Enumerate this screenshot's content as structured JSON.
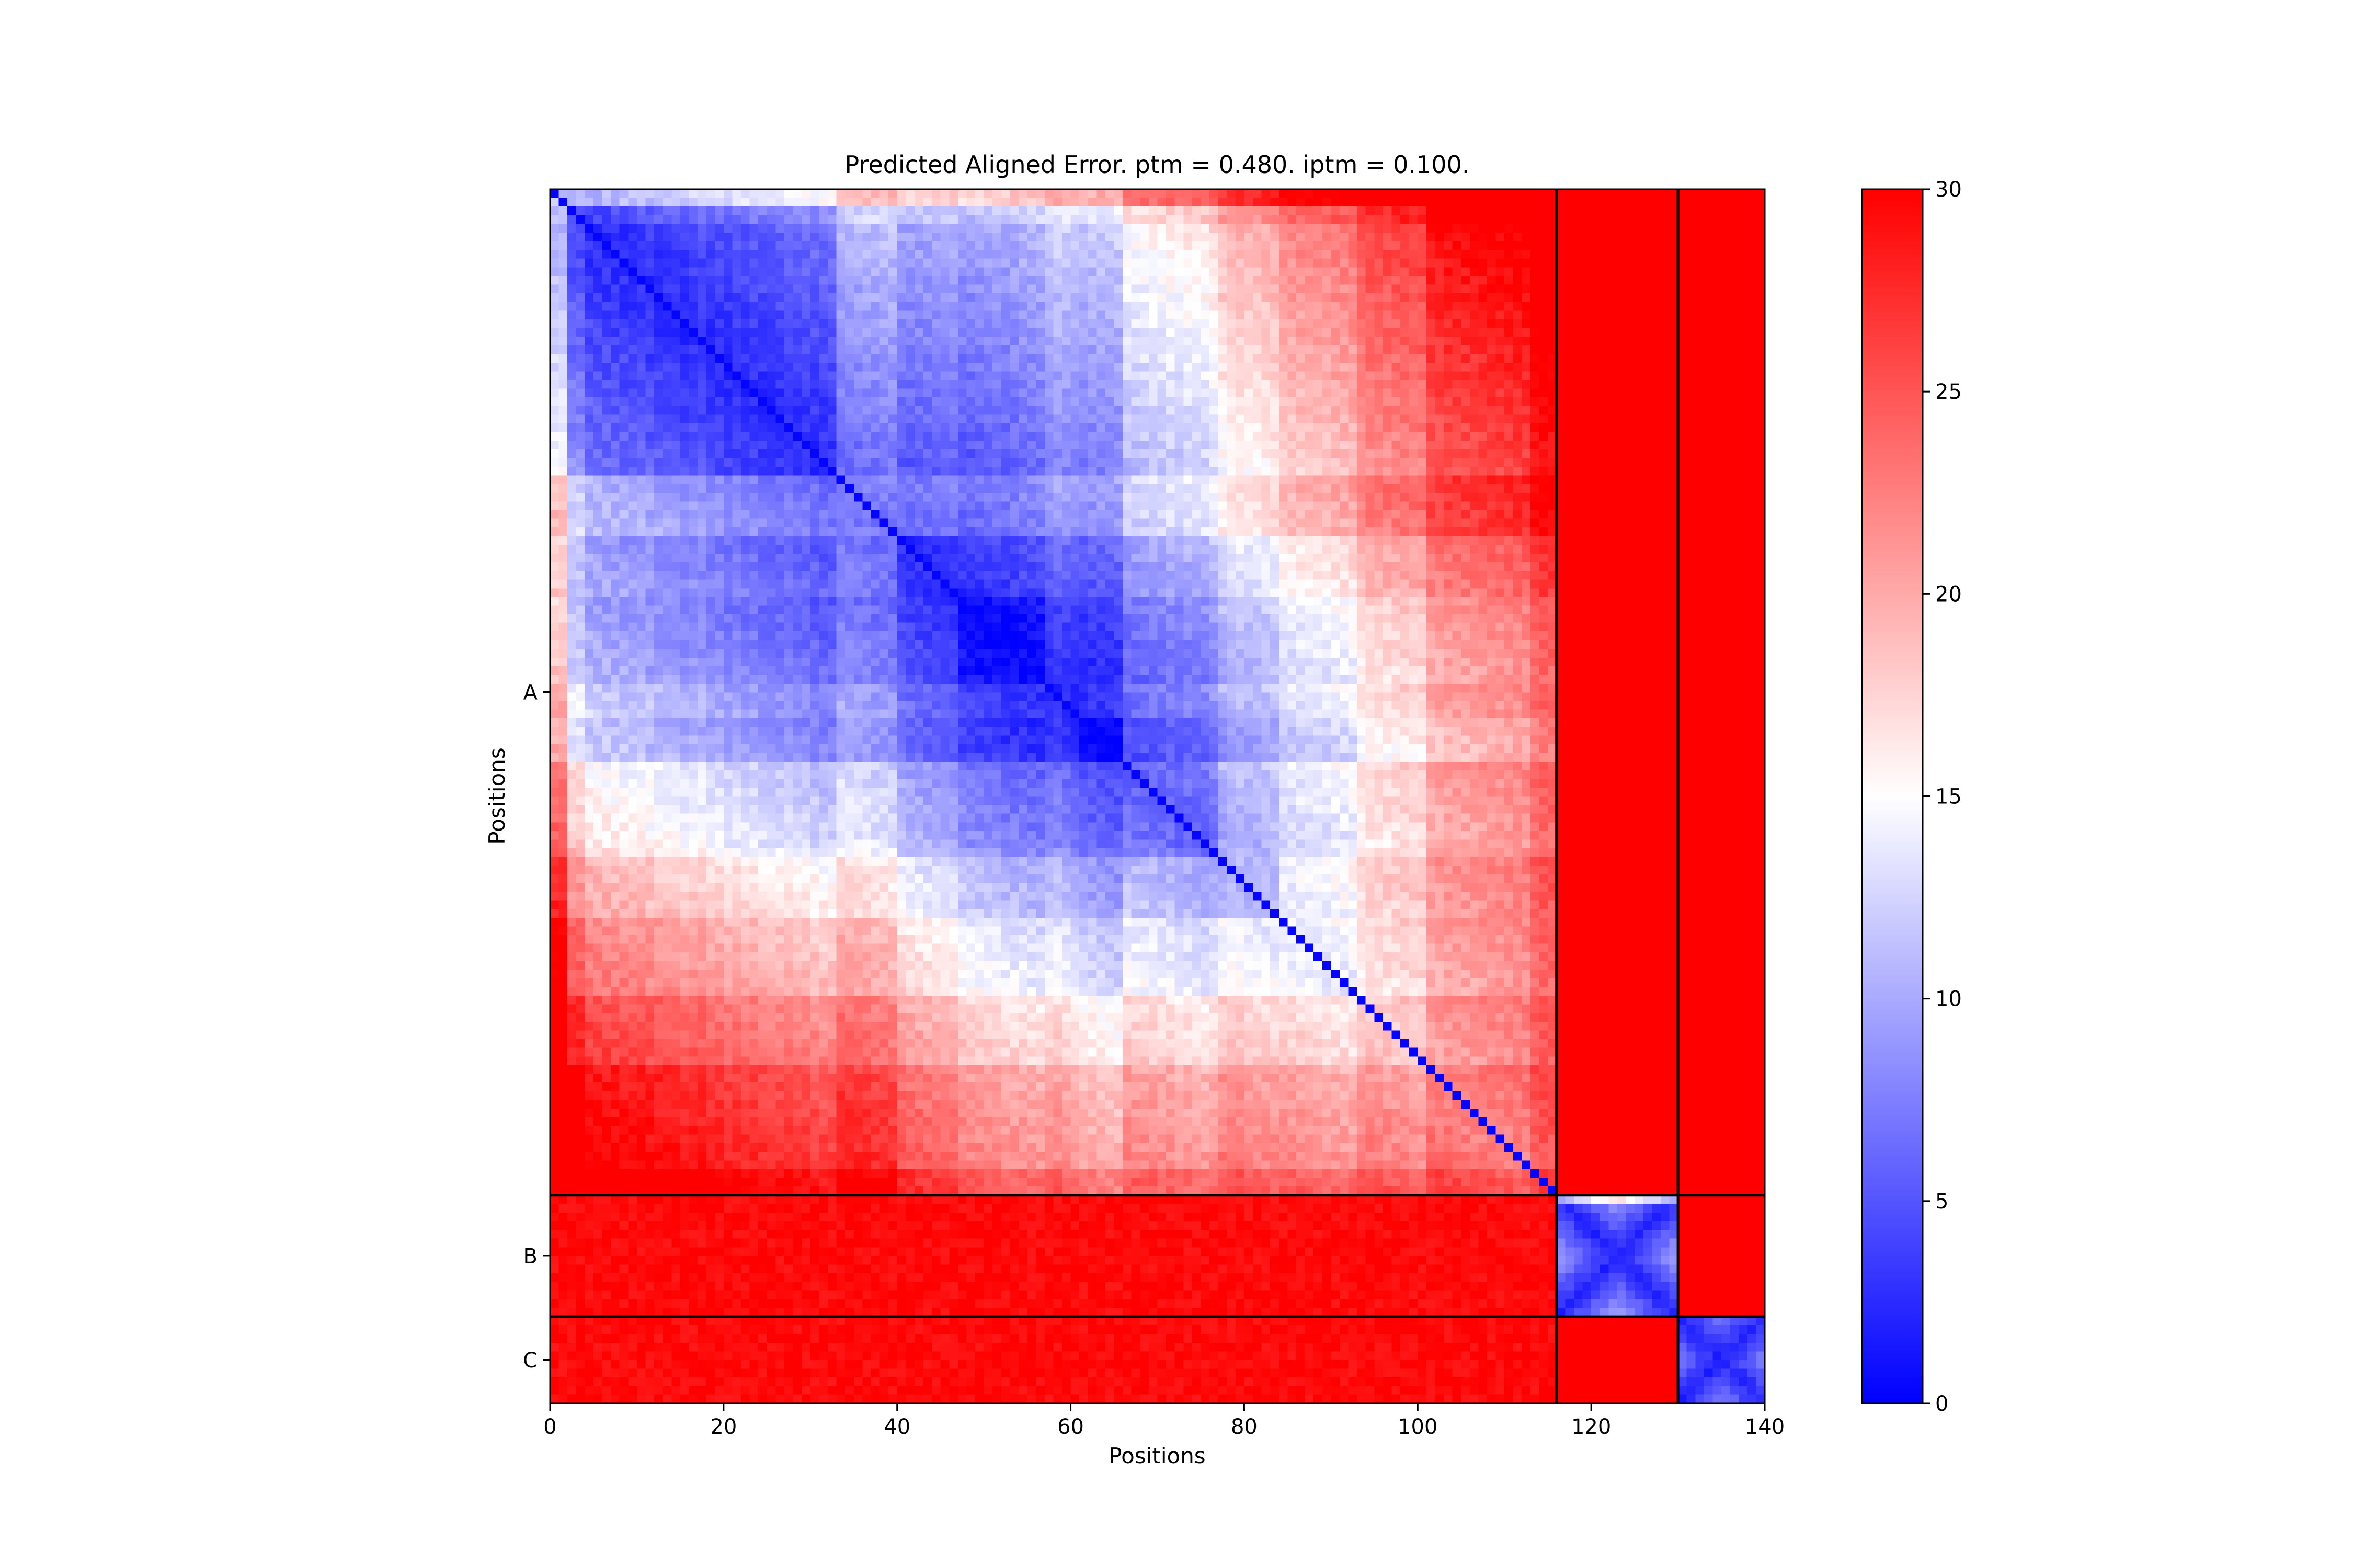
{
  "chart_data": {
    "type": "heatmap",
    "title": "Predicted Aligned Error. ptm = 0.480. iptm = 0.100.",
    "xlabel": "Positions",
    "ylabel": "Positions",
    "xlim": [
      0,
      140
    ],
    "ylim": [
      0,
      140
    ],
    "x_ticks": [
      0,
      20,
      40,
      60,
      80,
      100,
      120,
      140
    ],
    "x_tick_labels": [
      "0",
      "20",
      "40",
      "60",
      "80",
      "100",
      "120",
      "140"
    ],
    "chains": [
      {
        "label": "A",
        "start": 0,
        "end": 116,
        "tick": 58
      },
      {
        "label": "B",
        "start": 116,
        "end": 130,
        "tick": 123
      },
      {
        "label": "C",
        "start": 130,
        "end": 140,
        "tick": 135
      }
    ],
    "chain_boundaries": [
      116,
      130
    ],
    "colormap": {
      "name": "bwr",
      "low": "#0000ff",
      "mid": "#ffffff",
      "high": "#ff0000"
    },
    "colorbar": {
      "vmin": 0,
      "vmax": 30,
      "ticks": [
        0,
        5,
        10,
        15,
        20,
        25,
        30
      ],
      "tick_labels": [
        "0",
        "5",
        "10",
        "15",
        "20",
        "25",
        "30"
      ]
    },
    "matrix_summary": {
      "diagonal_value": 0,
      "intra_chain_A_typical": [
        2,
        14
      ],
      "chain_A_terminal_regions": [
        17,
        24
      ],
      "inter_chain_value": 30,
      "intra_chain_B_typical": [
        3,
        12
      ],
      "intra_chain_C_typical": [
        3,
        12
      ]
    }
  }
}
